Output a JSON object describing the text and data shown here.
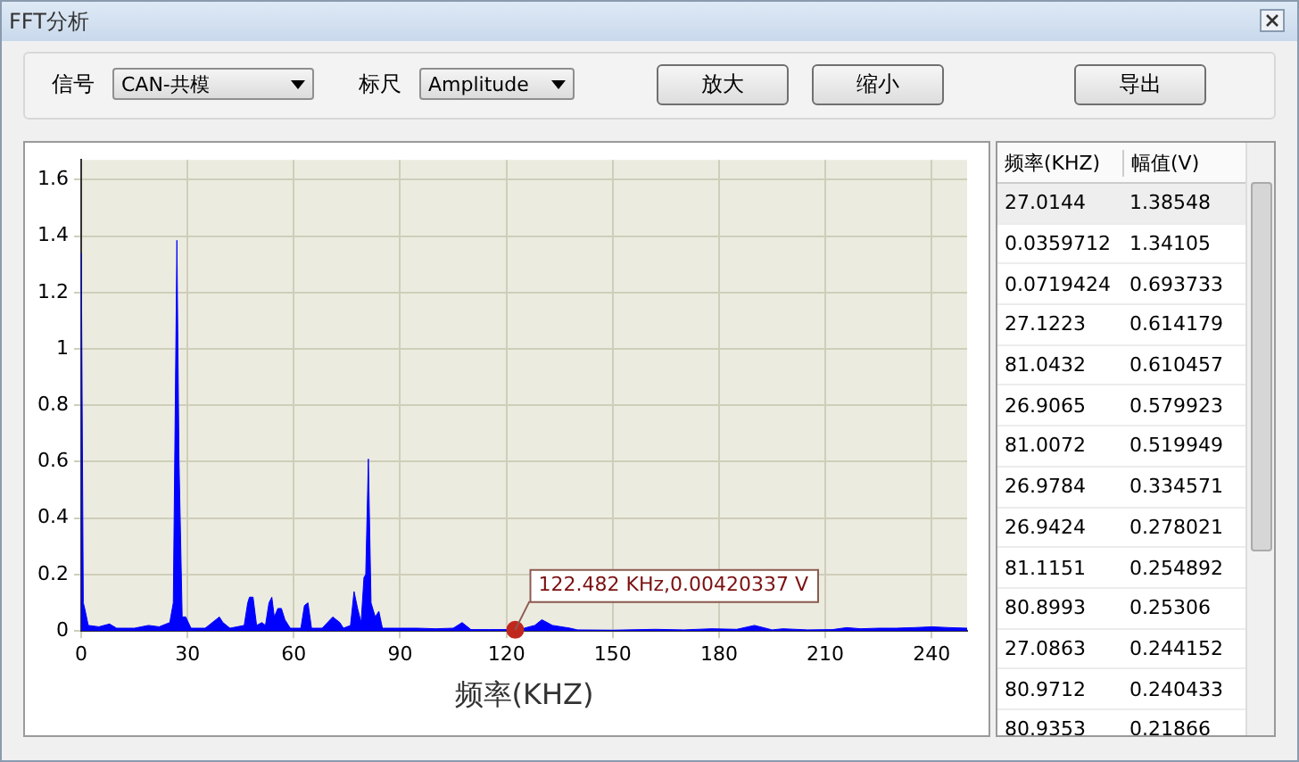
{
  "chart_data": [
    {
      "type": "area",
      "title": "FFT分析",
      "xlabel": "频率(KHZ)",
      "annotations": [
        "信号",
        "CAN-共模",
        "标尺",
        "Amplitude",
        "放大",
        "缩小",
        "导出",
        {
          "text": "122.482 KHz,0.00420337 V",
          "x": 122.482,
          "y": 0.00420337
        }
      ],
      "x": [
        0,
        0.036,
        0.6,
        1,
        2,
        5,
        8,
        10,
        15,
        19,
        22,
        25,
        26,
        27.0144,
        27.6,
        28.5,
        29.5,
        31,
        35,
        39,
        40,
        42,
        46,
        47,
        47.5,
        48.5,
        49.5,
        51,
        52,
        53,
        53.8,
        54.5,
        55.5,
        56.5,
        57.5,
        59,
        62,
        63,
        64,
        65,
        68,
        71,
        72,
        73,
        74,
        76,
        77,
        78,
        79,
        79.8,
        80.3,
        81.0432,
        81.8,
        82.5,
        83,
        84,
        85,
        90,
        95,
        100,
        105,
        107.5,
        110,
        115,
        120,
        122.482,
        125,
        128,
        130,
        133,
        138,
        140,
        150,
        162,
        170,
        178,
        185,
        190,
        195,
        198,
        205,
        212,
        216,
        220,
        225,
        230,
        235,
        240,
        245,
        250
      ],
      "series": [
        {
          "color": "#0000ff",
          "values": [
            0.1,
            1.34,
            0.1,
            0.08,
            0.02,
            0.015,
            0.025,
            0.01,
            0.01,
            0.02,
            0.015,
            0.03,
            0.1,
            1.385,
            0.61,
            0.05,
            0.05,
            0.01,
            0.01,
            0.05,
            0.03,
            0.01,
            0.02,
            0.1,
            0.12,
            0.12,
            0.02,
            0.03,
            0.02,
            0.1,
            0.12,
            0.05,
            0.08,
            0.08,
            0.04,
            0.01,
            0.01,
            0.09,
            0.1,
            0.01,
            0.01,
            0.05,
            0.04,
            0.03,
            0.01,
            0.02,
            0.14,
            0.08,
            0.03,
            0.19,
            0.2,
            0.61,
            0.1,
            0.07,
            0.05,
            0.07,
            0.01,
            0.01,
            0.01,
            0.008,
            0.01,
            0.03,
            0.005,
            0.005,
            0.005,
            0.004,
            0.01,
            0.02,
            0.04,
            0.02,
            0.01,
            0.004,
            0.003,
            0.006,
            0.004,
            0.008,
            0.006,
            0.02,
            0.004,
            0.008,
            0.004,
            0.005,
            0.012,
            0.008,
            0.01,
            0.01,
            0.012,
            0.015,
            0.012,
            0.01
          ]
        }
      ],
      "xlim": [
        0,
        250
      ],
      "xticks": [
        0,
        30,
        60,
        90,
        120,
        150,
        180,
        210,
        240
      ],
      "ylim": [
        0,
        1.67
      ],
      "yticks": [
        0,
        0.2,
        0.4,
        0.6,
        0.8,
        1,
        1.2,
        1.4,
        1.6
      ],
      "grid": true,
      "legend": false
    },
    {
      "type": "other",
      "xlabel": "频率(KHZ)",
      "ylabel": "幅值(V)",
      "categories": [
        "27.0144",
        "0.0359712",
        "0.0719424",
        "27.1223",
        "81.0432",
        "26.9065",
        "81.0072",
        "26.9784",
        "26.9424",
        "81.1151",
        "80.8993",
        "27.0863",
        "80.9712",
        "80.9353"
      ],
      "values": [
        1.38548,
        1.34105,
        0.693733,
        0.614179,
        0.610457,
        0.579923,
        0.519949,
        0.334571,
        0.278021,
        0.254892,
        0.25306,
        0.244152,
        0.240433,
        0.21866
      ],
      "data_labels": true
    }
  ]
}
